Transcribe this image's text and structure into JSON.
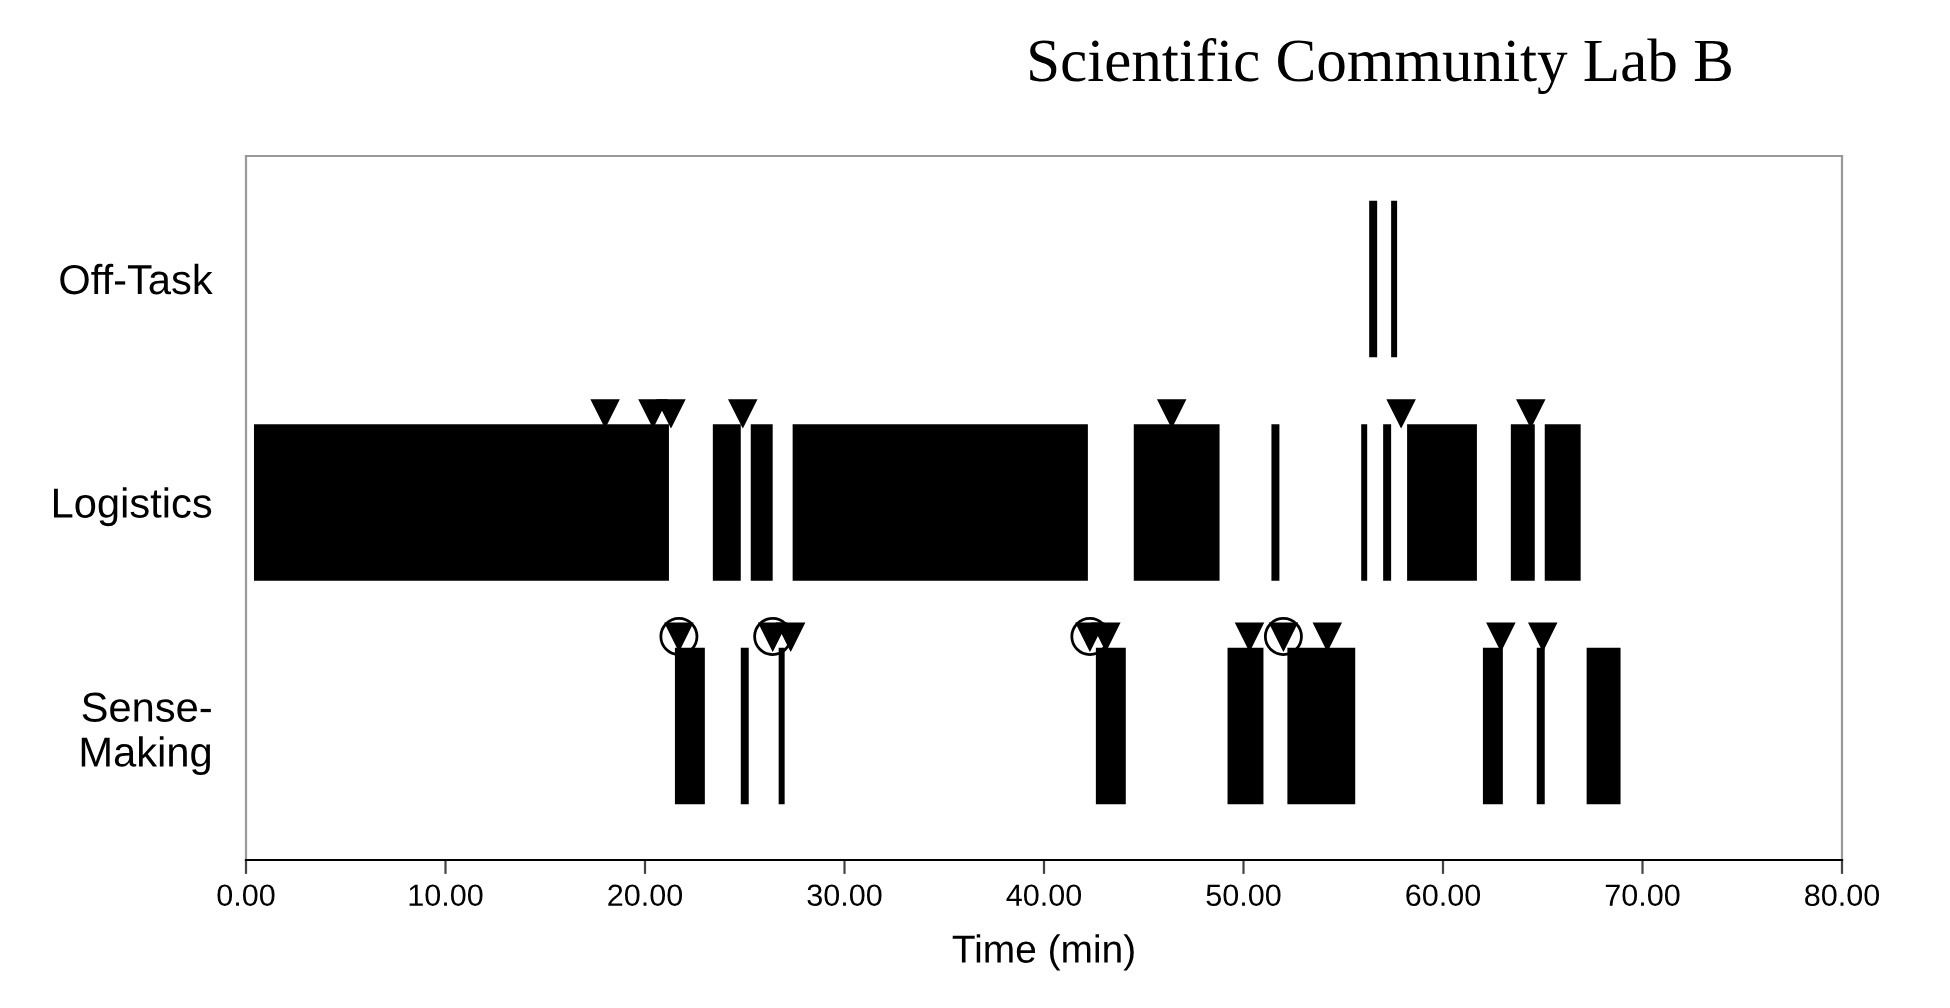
{
  "chart_data": {
    "type": "bar",
    "orientation": "horizontal",
    "title": "Scientific Community Lab B",
    "xlabel": "Time (min)",
    "categories": [
      "Off-Task",
      "Logistics",
      "Sense-\nMaking"
    ],
    "xlim": [
      0,
      80
    ],
    "xticks": [
      {
        "value": 0,
        "label": "0.00"
      },
      {
        "value": 10,
        "label": "10.00"
      },
      {
        "value": 20,
        "label": "20.00"
      },
      {
        "value": 30,
        "label": "30.00"
      },
      {
        "value": 40,
        "label": "40.00"
      },
      {
        "value": 50,
        "label": "50.00"
      },
      {
        "value": 60,
        "label": "60.00"
      },
      {
        "value": 70,
        "label": "70.00"
      },
      {
        "value": 80,
        "label": "80.00"
      }
    ],
    "grid": false,
    "series": [
      {
        "color": "#000000",
        "x": [
          "Off-Task",
          "Off-Task"
        ],
        "base": [
          56.3,
          57.4
        ],
        "values": [
          0.4,
          0.3
        ]
      },
      {
        "color": "#000000",
        "x": [
          "Logistics",
          "Logistics",
          "Logistics",
          "Logistics",
          "Logistics",
          "Logistics",
          "Logistics",
          "Logistics",
          "Logistics",
          "Logistics",
          "Logistics"
        ],
        "base": [
          0.4,
          23.4,
          25.3,
          27.4,
          44.5,
          51.4,
          55.9,
          57.0,
          58.2,
          63.4,
          65.1
        ],
        "values": [
          20.8,
          1.4,
          1.1,
          14.8,
          4.3,
          0.4,
          0.3,
          0.4,
          3.5,
          1.2,
          1.8
        ]
      },
      {
        "color": "#000000",
        "x": [
          "Sense-\nMaking",
          "Sense-\nMaking",
          "Sense-\nMaking",
          "Sense-\nMaking",
          "Sense-\nMaking",
          "Sense-\nMaking",
          "Sense-\nMaking",
          "Sense-\nMaking",
          "Sense-\nMaking"
        ],
        "base": [
          21.5,
          24.8,
          26.7,
          42.6,
          49.2,
          52.2,
          62.0,
          64.7,
          67.2
        ],
        "values": [
          1.5,
          0.4,
          0.3,
          1.5,
          1.8,
          3.4,
          1.0,
          0.4,
          1.7
        ]
      },
      {
        "type": "scatter",
        "marker": "triangle",
        "color": "#000000",
        "x": [
          "Logistics",
          "Logistics",
          "Logistics",
          "Logistics",
          "Logistics",
          "Logistics",
          "Logistics"
        ],
        "values": [
          18.0,
          20.4,
          21.3,
          24.9,
          46.4,
          57.9,
          64.4
        ]
      },
      {
        "type": "scatter",
        "marker": "circle",
        "color": "#000000",
        "x": [
          "Sense-\nMaking",
          "Sense-\nMaking",
          "Sense-\nMaking",
          "Sense-\nMaking"
        ],
        "values": [
          21.7,
          26.4,
          42.3,
          52.0
        ]
      },
      {
        "type": "scatter",
        "marker": "triangle",
        "color": "#000000",
        "x": [
          "Sense-\nMaking",
          "Sense-\nMaking",
          "Sense-\nMaking",
          "Sense-\nMaking",
          "Sense-\nMaking",
          "Sense-\nMaking",
          "Sense-\nMaking",
          "Sense-\nMaking",
          "Sense-\nMaking",
          "Sense-\nMaking"
        ],
        "values": [
          21.7,
          26.4,
          27.3,
          42.3,
          43.1,
          50.3,
          52.0,
          54.2,
          62.9,
          65.0
        ]
      }
    ]
  }
}
